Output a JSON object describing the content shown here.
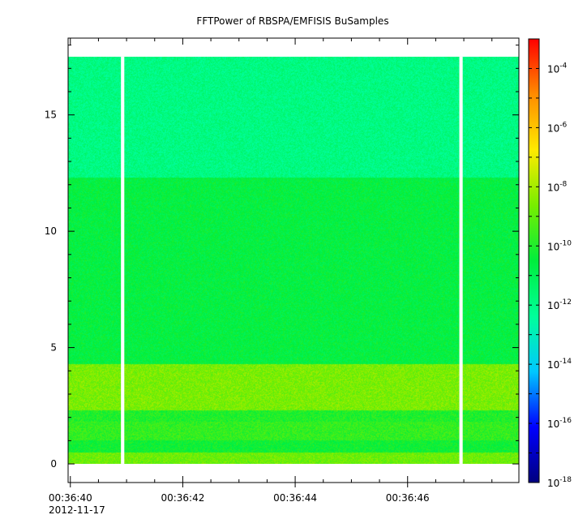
{
  "chart_data": {
    "type": "heatmap",
    "title": "FFTPower of RBSPA/EMFISIS  BuSamples",
    "xlabel": "",
    "ylabel": "",
    "x_date": "2012-11-17",
    "x_tick_labels": [
      "00:36:40",
      "00:36:42",
      "00:36:44",
      "00:36:46"
    ],
    "x_ticks_seconds": [
      40,
      42,
      44,
      46
    ],
    "xlim_seconds": [
      39.96,
      47.98
    ],
    "y_tick_labels": [
      "0",
      "5",
      "10",
      "15"
    ],
    "y_ticks": [
      0,
      5,
      10,
      15
    ],
    "ylim": [
      -0.8,
      18.3
    ],
    "y_data_max": 17.5,
    "data_gaps_seconds": [
      [
        40.9,
        40.96
      ],
      [
        46.92,
        46.98
      ]
    ],
    "zscale": "log",
    "zlim": [
      1e-18,
      0.001
    ],
    "colorbar_labels": [
      {
        "base": "10",
        "exp": "-4",
        "value": 0.0001
      },
      {
        "base": "10",
        "exp": "-6",
        "value": 1e-06
      },
      {
        "base": "10",
        "exp": "-8",
        "value": 1e-08
      },
      {
        "base": "10",
        "exp": "-10",
        "value": 1e-10
      },
      {
        "base": "10",
        "exp": "-12",
        "value": 1e-12
      },
      {
        "base": "10",
        "exp": "-14",
        "value": 1e-14
      },
      {
        "base": "10",
        "exp": "-16",
        "value": 1e-16
      },
      {
        "base": "10",
        "exp": "-18",
        "value": 1e-18
      }
    ],
    "colormap": [
      "#00007f",
      "#0000ff",
      "#00c8ff",
      "#00ff9a",
      "#00ee3c",
      "#78ee00",
      "#ffea00",
      "#ff8c00",
      "#ff0000"
    ],
    "power_profile": [
      {
        "from": 0.0,
        "to": 0.5,
        "log10_power": -8.8
      },
      {
        "from": 0.5,
        "to": 1.0,
        "log10_power": -10.3
      },
      {
        "from": 1.0,
        "to": 1.8,
        "log10_power": -9.7
      },
      {
        "from": 1.8,
        "to": 2.3,
        "log10_power": -10.0
      },
      {
        "from": 2.3,
        "to": 4.3,
        "log10_power": -8.6
      },
      {
        "from": 4.3,
        "to": 12.3,
        "log10_power": -10.6
      },
      {
        "from": 12.3,
        "to": 17.5,
        "log10_power": -11.9
      }
    ]
  }
}
